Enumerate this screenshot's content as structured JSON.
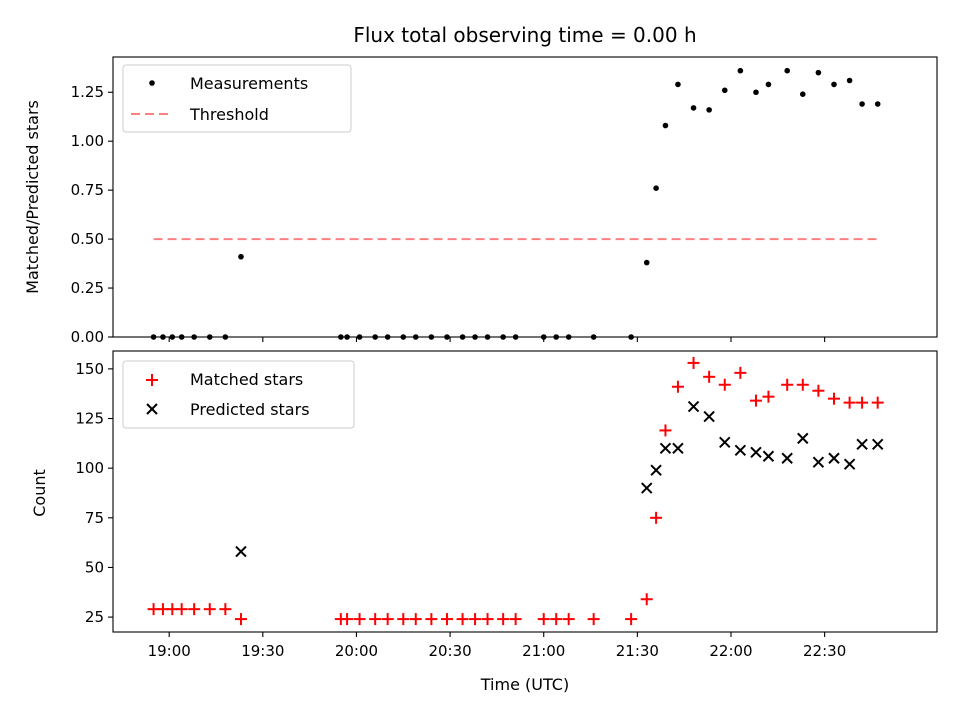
{
  "chart_data": {
    "title": "Flux total observing time = 0.00 h",
    "xlabel": "Time (UTC)",
    "x_ticks": [
      "19:00",
      "19:30",
      "20:00",
      "20:30",
      "21:00",
      "21:30",
      "22:00",
      "22:30"
    ],
    "colors": {
      "measurements": "#000000",
      "threshold": "#ff8080",
      "matched": "#ff0000",
      "predicted": "#000000"
    },
    "panels": [
      {
        "name": "ratio",
        "type": "scatter",
        "ylabel": "Matched/Predicted stars",
        "ylim": [
          0,
          1.43
        ],
        "y_ticks": [
          "0.00",
          "0.25",
          "0.50",
          "0.75",
          "1.00",
          "1.25"
        ],
        "legend": {
          "placement": "upper-left",
          "entries": [
            "Measurements",
            "Threshold"
          ]
        },
        "threshold": {
          "name": "Threshold",
          "value": 0.5,
          "x_start": "18:55",
          "x_end": "22:47"
        },
        "series": [
          {
            "name": "Measurements",
            "marker": "dot",
            "x": [
              "18:55",
              "18:58",
              "19:01",
              "19:04",
              "19:08",
              "19:13",
              "19:18",
              "19:23",
              "19:55",
              "19:57",
              "20:01",
              "20:06",
              "20:10",
              "20:15",
              "20:19",
              "20:24",
              "20:29",
              "20:34",
              "20:38",
              "20:42",
              "20:47",
              "20:51",
              "21:00",
              "21:04",
              "21:08",
              "21:16",
              "21:28",
              "21:33",
              "21:36",
              "21:39",
              "21:43",
              "21:48",
              "21:53",
              "21:58",
              "22:03",
              "22:08",
              "22:12",
              "22:18",
              "22:23",
              "22:28",
              "22:33",
              "22:38",
              "22:42",
              "22:47"
            ],
            "y": [
              0,
              0,
              0,
              0,
              0,
              0,
              0,
              0.41,
              0,
              0,
              0,
              0,
              0,
              0,
              0,
              0,
              0,
              0,
              0,
              0,
              0,
              0,
              0,
              0,
              0,
              0,
              0,
              0.38,
              0.76,
              1.08,
              1.29,
              1.17,
              1.16,
              1.26,
              1.36,
              1.25,
              1.29,
              1.36,
              1.24,
              1.35,
              1.29,
              1.31,
              1.19,
              1.19
            ]
          }
        ]
      },
      {
        "name": "counts",
        "type": "scatter",
        "ylabel": "Count",
        "ylim": [
          17.5,
          159
        ],
        "y_ticks": [
          "25",
          "50",
          "75",
          "100",
          "125",
          "150"
        ],
        "legend": {
          "placement": "upper-left",
          "entries": [
            "Matched stars",
            "Predicted stars"
          ]
        },
        "series": [
          {
            "name": "Matched stars",
            "marker": "plus",
            "x": [
              "18:55",
              "18:58",
              "19:01",
              "19:04",
              "19:08",
              "19:13",
              "19:18",
              "19:23",
              "19:55",
              "19:57",
              "20:01",
              "20:06",
              "20:10",
              "20:15",
              "20:19",
              "20:24",
              "20:29",
              "20:34",
              "20:38",
              "20:42",
              "20:47",
              "20:51",
              "21:00",
              "21:04",
              "21:08",
              "21:16",
              "21:28",
              "21:33",
              "21:36",
              "21:39",
              "21:43",
              "21:48",
              "21:53",
              "21:58",
              "22:03",
              "22:08",
              "22:12",
              "22:18",
              "22:23",
              "22:28",
              "22:33",
              "22:38",
              "22:42",
              "22:47"
            ],
            "y": [
              29,
              29,
              29,
              29,
              29,
              29,
              29,
              24,
              24,
              24,
              24,
              24,
              24,
              24,
              24,
              24,
              24,
              24,
              24,
              24,
              24,
              24,
              24,
              24,
              24,
              24,
              24,
              34,
              75,
              119,
              141,
              153,
              146,
              142,
              148,
              134,
              136,
              142,
              142,
              139,
              135,
              133,
              133,
              133
            ]
          },
          {
            "name": "Predicted stars",
            "marker": "x",
            "x": [
              "19:23",
              "21:33",
              "21:36",
              "21:39",
              "21:43",
              "21:48",
              "21:53",
              "21:58",
              "22:03",
              "22:08",
              "22:12",
              "22:18",
              "22:23",
              "22:28",
              "22:33",
              "22:38",
              "22:42",
              "22:47"
            ],
            "y": [
              58,
              90,
              99,
              110,
              110,
              131,
              126,
              113,
              109,
              108,
              106,
              105,
              115,
              103,
              105,
              102,
              112,
              112
            ]
          }
        ]
      }
    ]
  }
}
